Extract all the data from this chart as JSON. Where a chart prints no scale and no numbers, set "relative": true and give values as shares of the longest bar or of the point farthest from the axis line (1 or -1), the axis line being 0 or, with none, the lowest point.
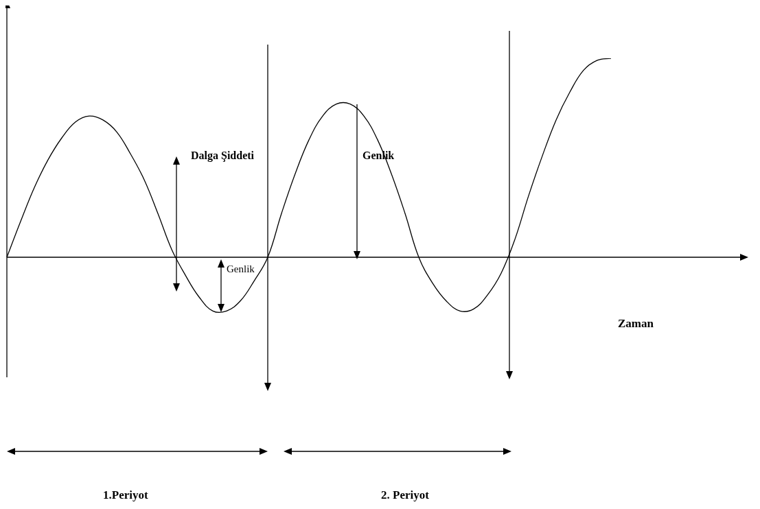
{
  "chart_data": {
    "type": "line",
    "relative": true,
    "categories": [
      null,
      null,
      null,
      null,
      null,
      null,
      null,
      null,
      null,
      null,
      null,
      null,
      null,
      null,
      null,
      null,
      null,
      null,
      null,
      null,
      null,
      null,
      null,
      null,
      null,
      null,
      null,
      null,
      null,
      null,
      null,
      null,
      null,
      null,
      null,
      null,
      null,
      null,
      null,
      null,
      null,
      null,
      null,
      null,
      null
    ],
    "series": [
      {
        "color": "#000000",
        "values": [
          0,
          0.18,
          0.35,
          0.49,
          0.6,
          0.68,
          0.71,
          0.69,
          0.63,
          0.52,
          0.39,
          0.22,
          0.04,
          -0.09,
          -0.2,
          -0.27,
          -0.27,
          -0.22,
          -0.12,
          0,
          0.22,
          0.42,
          0.59,
          0.71,
          0.77,
          0.77,
          0.71,
          0.59,
          0.42,
          0.22,
          0,
          -0.13,
          -0.22,
          -0.27,
          -0.26,
          -0.19,
          -0.08,
          0.09,
          0.31,
          0.51,
          0.69,
          0.83,
          0.94,
          0.99,
          1
        ]
      }
    ],
    "annotations": [
      "Dalga Şiddeti",
      "Genlik",
      "Genlik",
      "Zaman",
      "1.Periyot",
      "2. Periyot"
    ]
  }
}
